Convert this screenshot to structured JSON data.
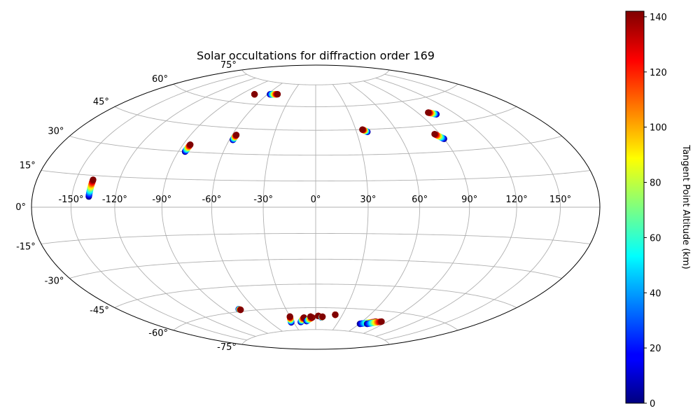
{
  "chart_data": {
    "type": "scatter",
    "projection": "hammer",
    "title": "Solar occultations for diffraction order 169",
    "grid": true,
    "colormap": "jet",
    "x_ticks": [
      "-150°",
      "-120°",
      "-90°",
      "-60°",
      "-30°",
      "0°",
      "30°",
      "60°",
      "90°",
      "120°",
      "150°"
    ],
    "x_tick_values": [
      -150,
      -120,
      -90,
      -60,
      -30,
      0,
      30,
      60,
      90,
      120,
      150
    ],
    "y_ticks": [
      "-75°",
      "-60°",
      "-45°",
      "-30°",
      "-15°",
      "0°",
      "15°",
      "30°",
      "45°",
      "60°",
      "75°"
    ],
    "y_tick_values": [
      -75,
      -60,
      -45,
      -30,
      -15,
      0,
      15,
      30,
      45,
      60,
      75
    ],
    "colorbar": {
      "label": "Tangent Point Altitude (km)",
      "range": [
        0,
        142
      ],
      "ticks": [
        "0",
        "20",
        "40",
        "60",
        "80",
        "100",
        "120",
        "140"
      ],
      "tick_values": [
        0,
        20,
        40,
        60,
        80,
        100,
        120,
        140
      ]
    },
    "series": [
      {
        "lon_start": -138,
        "lat_start": 5,
        "lon_end": -138,
        "lat_end": 13
      },
      {
        "lon_start": -85.5,
        "lat_start": 30,
        "lon_end": -85,
        "lat_end": 34
      },
      {
        "lon_start": -57.5,
        "lat_start": 38,
        "lon_end": -57,
        "lat_end": 41
      },
      {
        "lon_start": -57,
        "lat_start": 67,
        "lon_end": -48,
        "lat_end": 67.5
      },
      {
        "lon_start": -75,
        "lat_start": 66,
        "lon_end": -75,
        "lat_end": 66
      },
      {
        "lon_start": 38,
        "lat_start": 43.5,
        "lon_end": 35,
        "lat_end": 45
      },
      {
        "lon_start": 90,
        "lat_start": 37,
        "lon_end": 86,
        "lat_end": 40
      },
      {
        "lon_start": 104,
        "lat_start": 50.5,
        "lon_end": 99,
        "lat_end": 52
      },
      {
        "lon_start": -76,
        "lat_start": -58.5,
        "lon_end": -75,
        "lat_end": -59
      },
      {
        "lon_start": -33,
        "lat_start": -69.5,
        "lon_end": -30,
        "lat_end": -65.5
      },
      {
        "lon_start": -20,
        "lat_start": -69.5,
        "lon_end": -14,
        "lat_end": -66.5
      },
      {
        "lon_start": -12,
        "lat_start": -69,
        "lon_end": -4,
        "lat_end": -66.5
      },
      {
        "lon_start": -6,
        "lat_start": -66,
        "lon_end": -6,
        "lat_end": -66
      },
      {
        "lon_start": 3,
        "lat_start": -65.5,
        "lon_end": 3,
        "lat_end": -65.5
      },
      {
        "lon_start": 7,
        "lat_start": -66.5,
        "lon_end": 8,
        "lat_end": -66
      },
      {
        "lon_start": 22,
        "lat_start": -64.5,
        "lon_end": 22,
        "lat_end": -64.5
      },
      {
        "lon_start": 61,
        "lat_start": -69.5,
        "lon_end": 77,
        "lat_end": -67
      },
      {
        "lon_start": 70,
        "lat_start": -69,
        "lon_end": 83,
        "lat_end": -66.5
      }
    ]
  }
}
